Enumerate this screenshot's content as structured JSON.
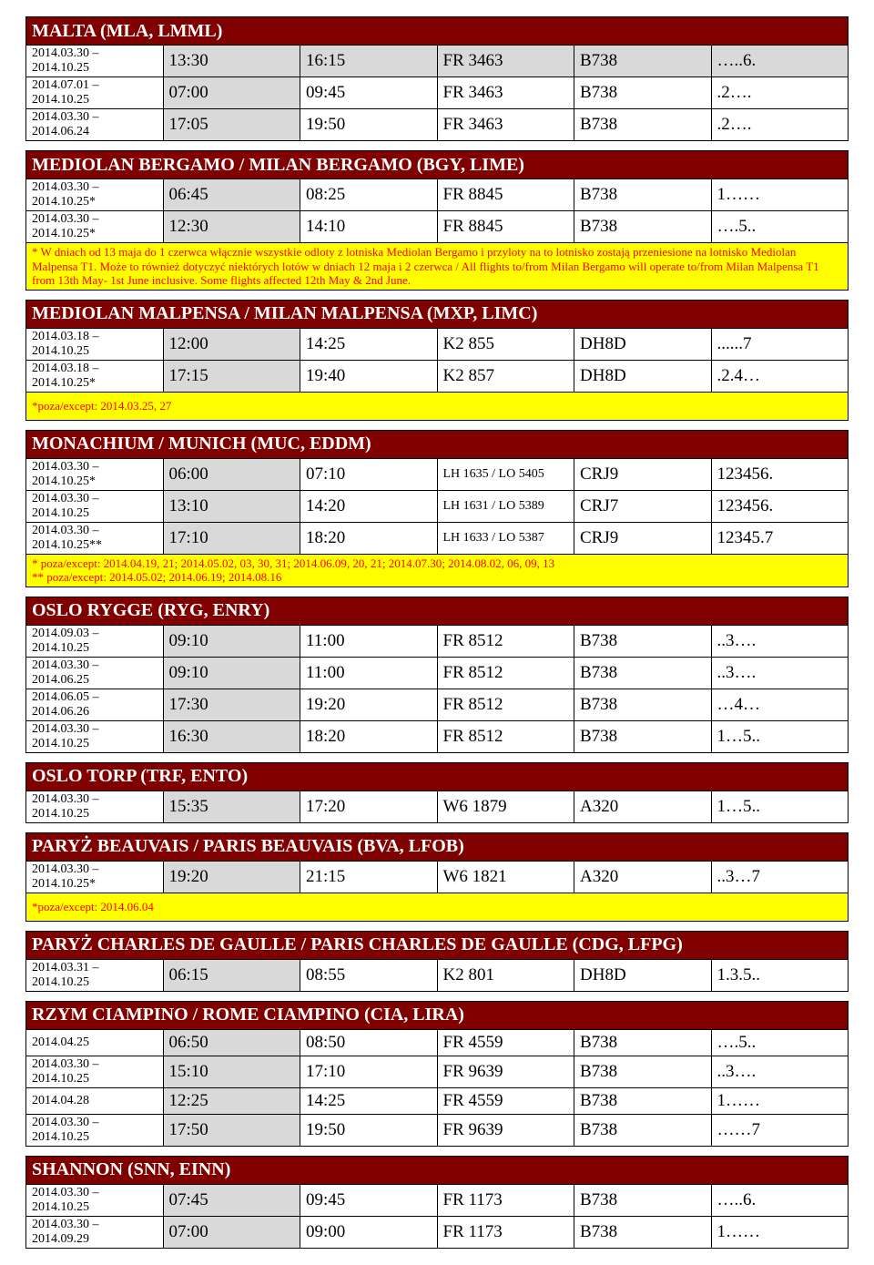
{
  "colors": {
    "header_bg": "#800000",
    "header_fg": "#ffffff",
    "shaded_bg": "#d9d9d9",
    "note_bg": "#ffff00",
    "note_fg": "#ff0000",
    "border": "#000000",
    "page_bg": "#ffffff"
  },
  "col_widths_pct": {
    "date": 21,
    "t1": 12,
    "t2": 12,
    "flight": 17,
    "aircraft": 16,
    "days": 22
  },
  "sections": [
    {
      "title": "MALTA (MLA, LMML)",
      "rows": [
        {
          "date": "2014.03.30 – 2014.10.25",
          "t1": "13:30",
          "t2": "16:15",
          "flight": "FR 3463",
          "ac": "B738",
          "days": "…..6.",
          "shaded": true
        },
        {
          "date": "2014.07.01 – 2014.10.25",
          "t1": "07:00",
          "t2": "09:45",
          "flight": "FR 3463",
          "ac": "B738",
          "days": ".2…."
        },
        {
          "date": "2014.03.30 – 2014.06.24",
          "t1": "17:05",
          "t2": "19:50",
          "flight": "FR 3463",
          "ac": "B738",
          "days": ".2…."
        }
      ]
    },
    {
      "title": "MEDIOLAN BERGAMO / MILAN BERGAMO (BGY, LIME)",
      "rows": [
        {
          "date": "2014.03.30 – 2014.10.25*",
          "t1": "06:45",
          "t2": "08:25",
          "flight": "FR 8845",
          "ac": "B738",
          "days": "1……"
        },
        {
          "date": "2014.03.30 – 2014.10.25*",
          "t1": "12:30",
          "t2": "14:10",
          "flight": "FR 8845",
          "ac": "B738",
          "days": "….5.."
        }
      ],
      "note": "* W dniach od 13 maja do 1 czerwca włącznie wszystkie odloty z lotniska Mediolan Bergamo i przyloty na to lotnisko zostają przeniesione na lotnisko Mediolan Malpensa T1. Może to również dotyczyć niektórych lotów w dniach 12 maja i 2 czerwca / All flights to/from Milan Bergamo will operate to/from Milan Malpensa T1 from 13th May- 1st June inclusive. Some flights affected  12th May & 2nd June."
    },
    {
      "title": "MEDIOLAN MALPENSA / MILAN MALPENSA (MXP, LIMC)",
      "rows": [
        {
          "date": "2014.03.18 – 2014.10.25",
          "t1": "12:00",
          "t2": "14:25",
          "flight": "K2 855",
          "ac": "DH8D",
          "days": "......7"
        },
        {
          "date": "2014.03.18 – 2014.10.25*",
          "t1": "17:15",
          "t2": "19:40",
          "flight": "K2 857",
          "ac": "DH8D",
          "days": ".2.4…"
        }
      ],
      "note": "*poza/except: 2014.03.25, 27"
    },
    {
      "title": "MONACHIUM / MUNICH (MUC, EDDM)",
      "rows": [
        {
          "date": "2014.03.30 – 2014.10.25*",
          "t1": "06:00",
          "t2": "07:10",
          "flight": "LH 1635 / LO 5405",
          "ac": "CRJ9",
          "days": "123456.",
          "small_flight": true
        },
        {
          "date": "2014.03.30 – 2014.10.25",
          "t1": "13:10",
          "t2": "14:20",
          "flight": "LH 1631 / LO 5389",
          "ac": "CRJ7",
          "days": "123456.",
          "small_flight": true
        },
        {
          "date": "2014.03.30 – 2014.10.25**",
          "t1": "17:10",
          "t2": "18:20",
          "flight": "LH 1633 / LO 5387",
          "ac": "CRJ9",
          "days": "12345.7",
          "small_flight": true
        }
      ],
      "note": "* poza/except: 2014.04.19, 21; 2014.05.02, 03, 30, 31; 2014.06.09, 20, 21; 2014.07.30;  2014.08.02, 06, 09, 13\n** poza/except: 2014.05.02; 2014.06.19; 2014.08.16"
    },
    {
      "title": "OSLO RYGGE (RYG, ENRY)",
      "rows": [
        {
          "date": "2014.09.03 – 2014.10.25",
          "t1": "09:10",
          "t2": "11:00",
          "flight": "FR 8512",
          "ac": "B738",
          "days": "..3…."
        },
        {
          "date": "2014.03.30 – 2014.06.25",
          "t1": "09:10",
          "t2": "11:00",
          "flight": "FR 8512",
          "ac": "B738",
          "days": "..3…."
        },
        {
          "date": "2014.06.05 – 2014.06.26",
          "t1": "17:30",
          "t2": "19:20",
          "flight": "FR 8512",
          "ac": "B738",
          "days": "…4…"
        },
        {
          "date": "2014.03.30 – 2014.10.25",
          "t1": "16:30",
          "t2": "18:20",
          "flight": "FR 8512",
          "ac": "B738",
          "days": "1…5.."
        }
      ]
    },
    {
      "title": "OSLO TORP (TRF, ENTO)",
      "rows": [
        {
          "date": "2014.03.30 – 2014.10.25",
          "t1": "15:35",
          "t2": "17:20",
          "flight": "W6 1879",
          "ac": "A320",
          "days": "1…5.."
        }
      ]
    },
    {
      "title": "PARYŻ BEAUVAIS / PARIS BEAUVAIS (BVA, LFOB)",
      "rows": [
        {
          "date": "2014.03.30 – 2014.10.25*",
          "t1": "19:20",
          "t2": "21:15",
          "flight": "W6 1821",
          "ac": "A320",
          "days": "..3…7"
        }
      ],
      "note": "*poza/except: 2014.06.04"
    },
    {
      "title": "PARYŻ CHARLES DE GAULLE / PARIS CHARLES DE GAULLE (CDG, LFPG)",
      "rows": [
        {
          "date": "2014.03.31 – 2014.10.25",
          "t1": "06:15",
          "t2": "08:55",
          "flight": "K2 801",
          "ac": "DH8D",
          "days": "1.3.5.."
        }
      ]
    },
    {
      "title": "RZYM CIAMPINO / ROME CIAMPINO (CIA, LIRA)",
      "rows": [
        {
          "date": "2014.04.25",
          "t1": "06:50",
          "t2": "08:50",
          "flight": "FR 4559",
          "ac": "B738",
          "days": "….5.."
        },
        {
          "date": "2014.03.30 – 2014.10.25",
          "t1": "15:10",
          "t2": "17:10",
          "flight": "FR 9639",
          "ac": "B738",
          "days": "..3…."
        },
        {
          "date": "2014.04.28",
          "t1": "12:25",
          "t2": "14:25",
          "flight": "FR 4559",
          "ac": "B738",
          "days": "1……"
        },
        {
          "date": "2014.03.30 – 2014.10.25",
          "t1": "17:50",
          "t2": "19:50",
          "flight": "FR 9639",
          "ac": "B738",
          "days": "……7"
        }
      ]
    },
    {
      "title": "SHANNON (SNN, EINN)",
      "rows": [
        {
          "date": "2014.03.30 – 2014.10.25",
          "t1": "07:45",
          "t2": "09:45",
          "flight": "FR 1173",
          "ac": "B738",
          "days": "…..6."
        },
        {
          "date": "2014.03.30 – 2014.09.29",
          "t1": "07:00",
          "t2": "09:00",
          "flight": "FR 1173",
          "ac": "B738",
          "days": "1……"
        }
      ]
    }
  ]
}
